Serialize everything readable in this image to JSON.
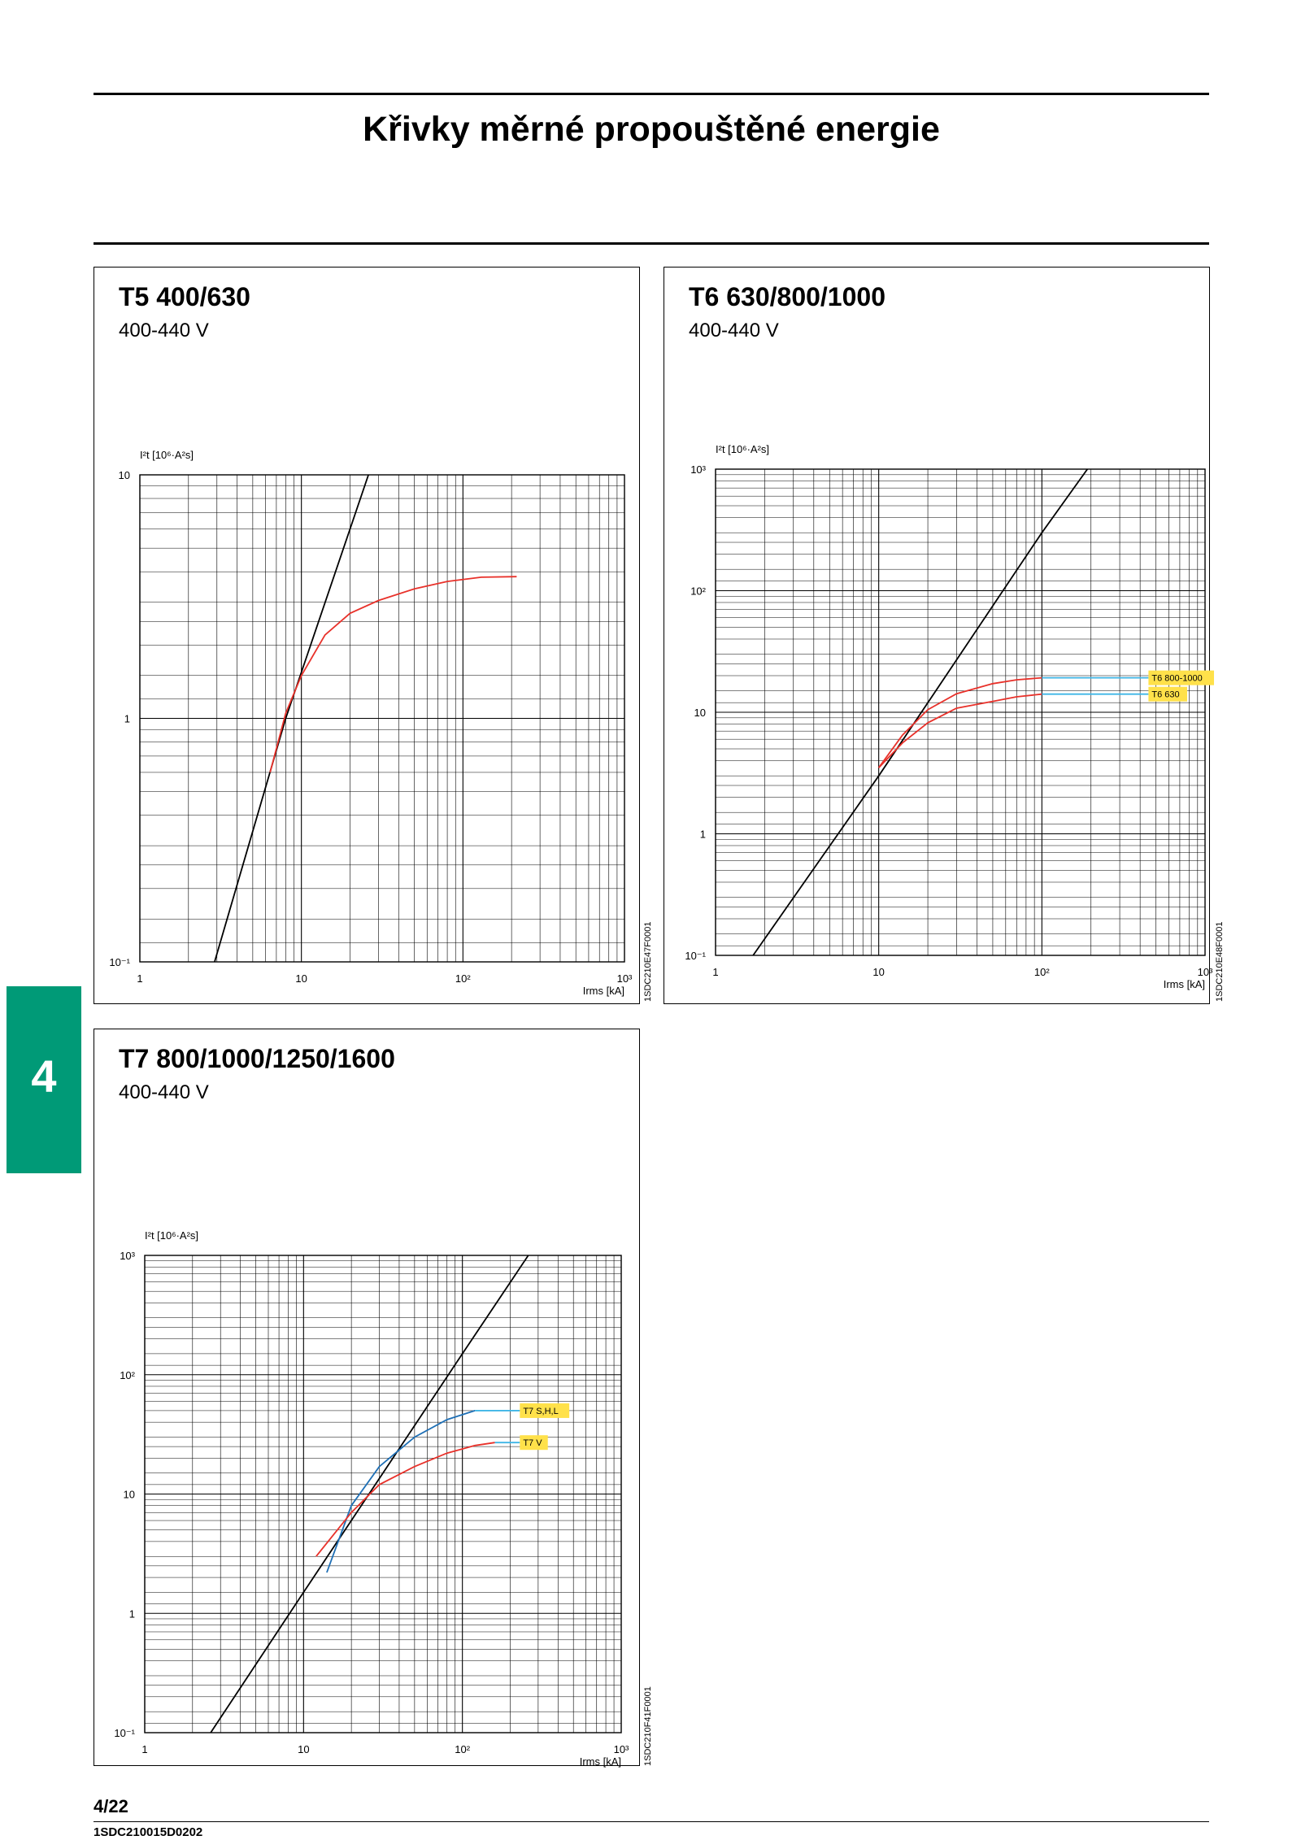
{
  "page": {
    "title": "Křivky měrné propouštěné energie",
    "section_tab": "4",
    "page_number": "4/22",
    "doc_code": "1SDC210015D0202"
  },
  "colors": {
    "tab": "#009a77",
    "red_curve": "#e8312a",
    "blue_curve": "#1e6fb5",
    "cyan_line": "#3fb6e6",
    "tag": "#ffe14a"
  },
  "chart_data": [
    {
      "type": "line",
      "title": "T5 400/630",
      "subtitle": "400-440 V",
      "ylabel": "I²t [10⁶·A²s]",
      "xlabel": "Irms [kA]",
      "xscale": "log",
      "yscale": "log",
      "xlim": [
        1,
        1000
      ],
      "ylim": [
        0.1,
        10
      ],
      "x_ticks": [
        "1",
        "10",
        "10²",
        "10³"
      ],
      "y_ticks": [
        "10⁻¹",
        "1",
        "10"
      ],
      "image_code": "1SDC210E47F0001",
      "series": [
        {
          "color": "#000000",
          "points": [
            [
              2.9,
              0.1
            ],
            [
              8,
              1
            ],
            [
              26,
              10
            ]
          ]
        },
        {
          "color": "#e8312a",
          "points": [
            [
              6.4,
              0.6
            ],
            [
              8,
              1.05
            ],
            [
              10,
              1.5
            ],
            [
              14,
              2.2
            ],
            [
              20,
              2.7
            ],
            [
              30,
              3.05
            ],
            [
              50,
              3.4
            ],
            [
              80,
              3.65
            ],
            [
              130,
              3.8
            ],
            [
              215,
              3.82
            ]
          ]
        }
      ]
    },
    {
      "type": "line",
      "title": "T6 630/800/1000",
      "subtitle": "400-440 V",
      "ylabel": "I²t [10⁶·A²s]",
      "xlabel": "Irms [kA]",
      "xscale": "log",
      "yscale": "log",
      "xlim": [
        1,
        1000
      ],
      "ylim": [
        0.1,
        1000
      ],
      "x_ticks": [
        "1",
        "10",
        "10²",
        "10³"
      ],
      "y_ticks": [
        "10⁻¹",
        "1",
        "10",
        "10²",
        "10³"
      ],
      "image_code": "1SDC210E48F0001",
      "series": [
        {
          "color": "#000000",
          "points": [
            [
              1.7,
              0.1
            ],
            [
              10,
              3
            ],
            [
              100,
              300
            ],
            [
              190,
              1000
            ]
          ]
        },
        {
          "name": "T6 800-1000",
          "color": "#e8312a",
          "line_color": "#3fb6e6",
          "points": [
            [
              10,
              3.5
            ],
            [
              14,
              6.5
            ],
            [
              20,
              10.5
            ],
            [
              30,
              14.2
            ],
            [
              50,
              17.2
            ],
            [
              70,
              18.5
            ],
            [
              100,
              19.2
            ],
            [
              450,
              19.2
            ]
          ]
        },
        {
          "name": "T6 630",
          "color": "#e8312a",
          "line_color": "#3fb6e6",
          "points": [
            [
              10,
              3.5
            ],
            [
              14,
              5.6
            ],
            [
              20,
              8.2
            ],
            [
              30,
              10.8
            ],
            [
              50,
              12.3
            ],
            [
              70,
              13.4
            ],
            [
              100,
              14.1
            ],
            [
              450,
              14.1
            ]
          ]
        }
      ]
    },
    {
      "type": "line",
      "title": "T7 800/1000/1250/1600",
      "subtitle": "400-440 V",
      "ylabel": "I²t [10⁶·A²s]",
      "xlabel": "Irms [kA]",
      "xscale": "log",
      "yscale": "log",
      "xlim": [
        1,
        1000
      ],
      "ylim": [
        0.1,
        1000
      ],
      "x_ticks": [
        "1",
        "10",
        "10²",
        "10³"
      ],
      "y_ticks": [
        "10⁻¹",
        "1",
        "10",
        "10²",
        "10³"
      ],
      "image_code": "1SDC210F41F0001",
      "series": [
        {
          "color": "#000000",
          "points": [
            [
              2.6,
              0.1
            ],
            [
              10,
              1.5
            ],
            [
              100,
              150
            ],
            [
              260,
              1000
            ]
          ]
        },
        {
          "name": "T7 S,H,L",
          "color": "#1e6fb5",
          "line_color": "#3fb6e6",
          "points": [
            [
              14,
              2.2
            ],
            [
              20,
              8
            ],
            [
              30,
              17
            ],
            [
              50,
              30
            ],
            [
              80,
              42
            ],
            [
              120,
              50
            ],
            [
              230,
              50
            ]
          ]
        },
        {
          "name": "T7 V",
          "color": "#e8312a",
          "line_color": "#3fb6e6",
          "points": [
            [
              12,
              3
            ],
            [
              20,
              7
            ],
            [
              30,
              12
            ],
            [
              50,
              17
            ],
            [
              80,
              22
            ],
            [
              120,
              25.5
            ],
            [
              160,
              27
            ],
            [
              230,
              27
            ]
          ]
        }
      ]
    }
  ]
}
